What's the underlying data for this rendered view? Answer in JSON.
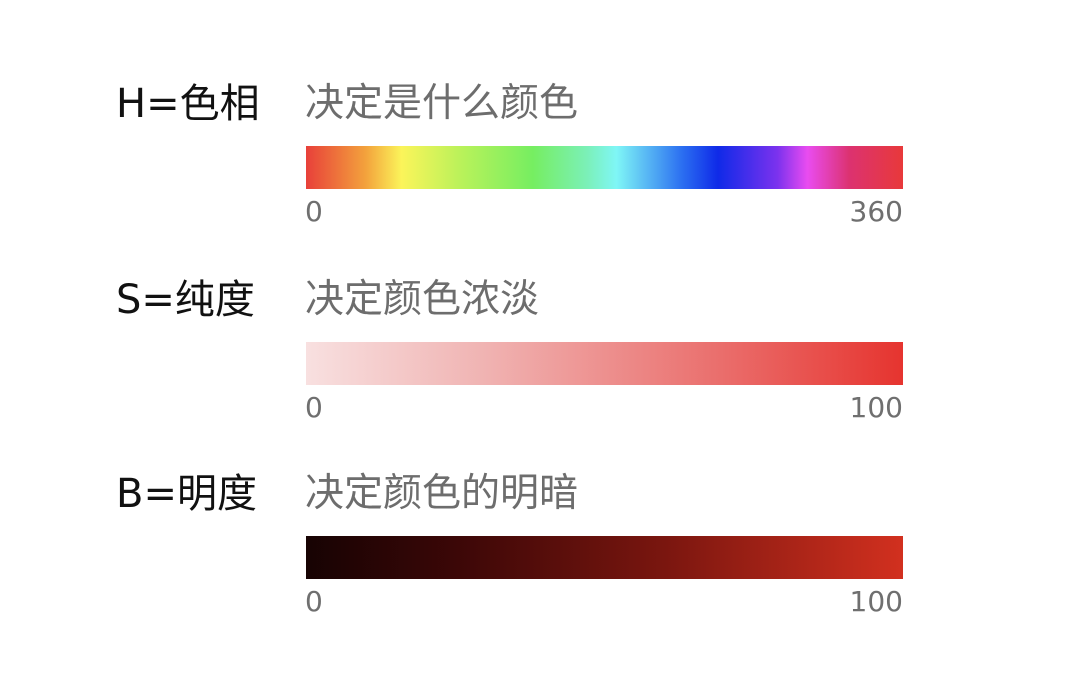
{
  "rows": [
    {
      "label": "H=色相",
      "description": "决定是什么颜色",
      "min": "0",
      "max": "360"
    },
    {
      "label": "S=纯度",
      "description": "决定颜色浓淡",
      "min": "0",
      "max": "100"
    },
    {
      "label": "B=明度",
      "description": "决定颜色的明暗",
      "min": "0",
      "max": "100"
    }
  ],
  "colors": {
    "label_text": "#111111",
    "description_text": "#6d6d6d",
    "tick_text": "#6f6f6f",
    "hue_stops": [
      "#e8403a",
      "#f3a23c",
      "#fbf45a",
      "#b9f25a",
      "#76ee61",
      "#7bf0b7",
      "#7ff6f6",
      "#2b6ff1",
      "#0f2ae8",
      "#7c32ee",
      "#e94cf0",
      "#dc3270",
      "#e8393a"
    ],
    "saturation_stops": [
      "#f8e0e0",
      "#f0b3b2",
      "#ea6d6b",
      "#e6342f"
    ],
    "brightness_stops": [
      "#170303",
      "#3b0707",
      "#7a160f",
      "#d2301f"
    ]
  }
}
